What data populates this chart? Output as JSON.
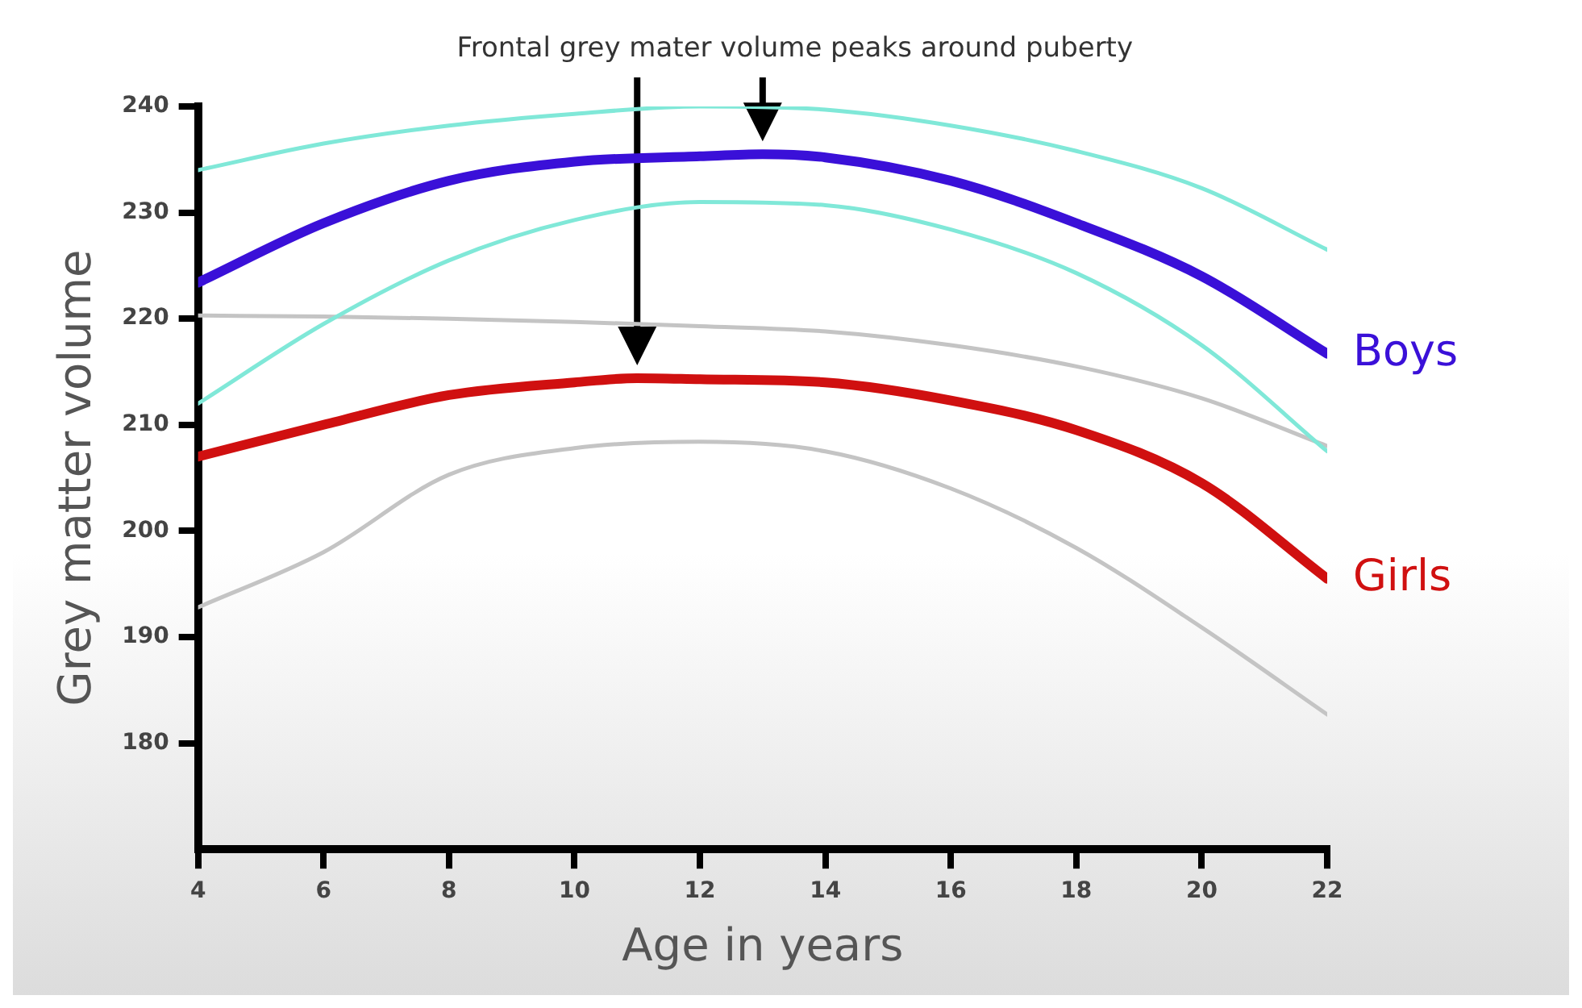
{
  "chart_data": {
    "type": "line",
    "annotations": [
      "Frontal grey mater volume peaks around puberty"
    ],
    "xlabel": "Age in years",
    "ylabel": "Grey matter volume",
    "x": [
      4,
      6,
      8,
      10,
      12,
      14,
      16,
      18,
      20,
      22
    ],
    "xlim": [
      4,
      22
    ],
    "xticks": [
      4,
      6,
      8,
      10,
      12,
      14,
      16,
      18,
      20,
      22
    ],
    "ylim": [
      170,
      240
    ],
    "yticks": [
      180,
      190,
      200,
      210,
      220,
      230,
      240
    ],
    "grid": false,
    "legend": false,
    "marker": "none",
    "line_style": "solid",
    "series": [
      {
        "color": "#80e8d8",
        "values": [
          234,
          236.5,
          238.2,
          239.3,
          240,
          239.7,
          238.2,
          235.8,
          232.3,
          226.5
        ]
      },
      {
        "color": "#80e8d8",
        "values": [
          212,
          219.5,
          225.5,
          229.3,
          231,
          230.7,
          228.4,
          224.3,
          217.5,
          207.5
        ]
      },
      {
        "color": "#c4c4c4",
        "values": [
          220.3,
          220.2,
          220,
          219.7,
          219.3,
          218.8,
          217.5,
          215.5,
          212.5,
          208
        ]
      },
      {
        "color": "#c4c4c4",
        "values": [
          192.8,
          198,
          205.3,
          207.8,
          208.4,
          207.5,
          204,
          198.4,
          190.9,
          182.7
        ]
      },
      {
        "name": "Boys",
        "color": "#3a10d8",
        "x": [
          4,
          6,
          8,
          10,
          12,
          13,
          14,
          16,
          18,
          20,
          22
        ],
        "values": [
          223.4,
          229,
          233,
          234.8,
          235.3,
          235.5,
          235.2,
          233,
          229,
          224,
          216.7
        ]
      },
      {
        "name": "Girls",
        "color": "#d01010",
        "x": [
          4,
          6,
          8,
          10,
          11,
          12,
          14,
          16,
          18,
          20,
          22
        ],
        "values": [
          207,
          210,
          212.8,
          214,
          214.4,
          214.3,
          214,
          212.3,
          209.5,
          204.5,
          195.5
        ]
      }
    ]
  }
}
